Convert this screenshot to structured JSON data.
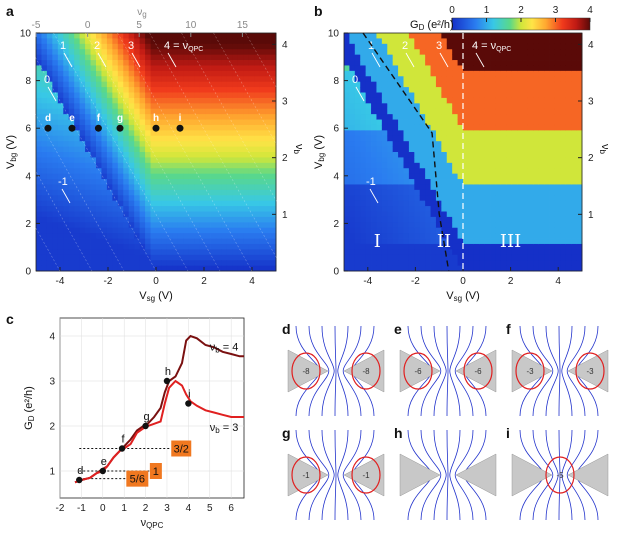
{
  "panels": {
    "a": "a",
    "b": "b",
    "c": "c",
    "d": "d",
    "e": "e",
    "f": "f",
    "g": "g",
    "h": "h",
    "i": "i"
  },
  "colors": {
    "red_curve": "#e02020",
    "dark_curve": "#7a1010",
    "box": "#f07820",
    "field_line": "#2233cc",
    "edge_state": "#e02020",
    "dot": "#111111"
  },
  "colorbar": {
    "label": "G",
    "label_sub": "D",
    "label_unit": " (e²/h)",
    "ticks": [
      "0",
      "1",
      "2",
      "3",
      "4"
    ],
    "range": [
      0,
      4
    ]
  },
  "chart_data": [
    {
      "type": "heatmap",
      "panel": "a",
      "xlabel": "V",
      "xlabel_sub": "sg",
      "xlabel_unit": " (V)",
      "ylabel": "V",
      "ylabel_sub": "bg",
      "ylabel_unit": " (V)",
      "top_label": "ν",
      "top_label_sub": "g",
      "right_label": "ν",
      "right_label_sub": "b",
      "xlim": [
        -5,
        5
      ],
      "ylim": [
        0,
        10
      ],
      "xticks": [
        "-4",
        "-2",
        "0",
        "2",
        "4"
      ],
      "yticks": [
        "0",
        "2",
        "4",
        "6",
        "8",
        "10"
      ],
      "top_ticks": [
        "-5",
        "0",
        "5",
        "10",
        "15"
      ],
      "right_ticks": [
        "1",
        "2",
        "3",
        "4"
      ],
      "filling_annotations": [
        "-1",
        "0",
        "1",
        "2",
        "3",
        "4 = ν",
        "QPC"
      ],
      "points": [
        {
          "label": "d",
          "x": -4.5,
          "y": 6.0
        },
        {
          "label": "e",
          "x": -3.5,
          "y": 6.0
        },
        {
          "label": "f",
          "x": -2.4,
          "y": 6.0
        },
        {
          "label": "g",
          "x": -1.5,
          "y": 6.0
        },
        {
          "label": "h",
          "x": 0.0,
          "y": 6.0
        },
        {
          "label": "i",
          "x": 1.0,
          "y": 6.0
        }
      ]
    },
    {
      "type": "heatmap",
      "panel": "b",
      "xlabel": "V",
      "xlabel_sub": "sg",
      "xlabel_unit": " (V)",
      "ylabel": "V",
      "ylabel_sub": "bg",
      "ylabel_unit": " (V)",
      "right_label": "ν",
      "right_label_sub": "b",
      "xlim": [
        -5,
        5
      ],
      "ylim": [
        0,
        10
      ],
      "xticks": [
        "-4",
        "-2",
        "0",
        "2",
        "4"
      ],
      "yticks": [
        "0",
        "2",
        "4",
        "6",
        "8",
        "10"
      ],
      "right_ticks": [
        "1",
        "2",
        "3",
        "4"
      ],
      "regions": [
        "I",
        "II",
        "III"
      ],
      "filling_annotations": [
        "-1",
        "0",
        "1",
        "2",
        "3",
        "4 = ν",
        "QPC"
      ]
    },
    {
      "type": "line",
      "panel": "c",
      "xlabel": "ν",
      "xlabel_sub": "QPC",
      "ylabel": "G",
      "ylabel_sub": "D",
      "ylabel_unit": " (e²/h)",
      "xlim": [
        -2,
        6.6
      ],
      "ylim": [
        0.4,
        4.4
      ],
      "xticks": [
        "-2",
        "-1",
        "0",
        "1",
        "2",
        "3",
        "4",
        "5",
        "6"
      ],
      "yticks": [
        "1",
        "2",
        "3",
        "4"
      ],
      "series": [
        {
          "name": "ν",
          "name_sub": "b",
          "name_value": " = 4",
          "x": [
            -1.3,
            -1.0,
            -0.6,
            -0.3,
            0.0,
            0.2,
            0.5,
            0.8,
            1.0,
            1.3,
            1.6,
            1.9,
            2.1,
            2.4,
            2.7,
            2.9,
            3.1,
            3.4,
            3.7,
            3.9,
            4.1,
            4.4,
            4.8,
            5.2,
            5.6,
            6.0,
            6.4,
            6.6
          ],
          "y": [
            0.75,
            0.8,
            0.85,
            0.95,
            1.05,
            1.1,
            1.3,
            1.45,
            1.55,
            1.7,
            1.9,
            2.0,
            2.05,
            2.2,
            2.4,
            2.75,
            3.0,
            3.1,
            3.4,
            3.9,
            4.0,
            3.95,
            3.8,
            3.75,
            3.65,
            3.6,
            3.55,
            3.55
          ]
        },
        {
          "name": "ν",
          "name_sub": "b",
          "name_value": " = 3",
          "x": [
            -1.3,
            -1.0,
            -0.6,
            -0.3,
            0.0,
            0.2,
            0.5,
            0.8,
            1.0,
            1.3,
            1.6,
            1.9,
            2.1,
            2.4,
            2.7,
            2.9,
            3.1,
            3.4,
            3.7,
            3.9,
            4.1,
            4.4,
            4.8,
            5.2,
            5.6,
            6.0,
            6.4,
            6.6
          ],
          "y": [
            0.75,
            0.8,
            0.85,
            0.95,
            1.0,
            1.1,
            1.3,
            1.45,
            1.5,
            1.6,
            1.85,
            1.95,
            2.0,
            2.05,
            2.1,
            2.5,
            2.85,
            3.0,
            2.9,
            2.7,
            2.55,
            2.45,
            2.35,
            2.3,
            2.25,
            2.2,
            2.2,
            2.2
          ]
        }
      ],
      "points": [
        {
          "label": "d",
          "x": -1.1,
          "y": 0.8
        },
        {
          "label": "e",
          "x": 0.0,
          "y": 1.0
        },
        {
          "label": "f",
          "x": 0.9,
          "y": 1.5
        },
        {
          "label": "g",
          "x": 2.0,
          "y": 2.0
        },
        {
          "label": "h",
          "x": 3.0,
          "y": 3.0
        },
        {
          "label": "i",
          "x": 4.0,
          "y": 2.5
        }
      ],
      "plateau_boxes": [
        {
          "label": "3/2",
          "y": 1.5
        },
        {
          "label": "1",
          "y": 1.0
        },
        {
          "label": "5/6",
          "y": 0.83
        }
      ]
    }
  ],
  "schematics": {
    "d": [
      "-8",
      "-8"
    ],
    "e": [
      "-6",
      "-6"
    ],
    "f": [
      "-3",
      "-3"
    ],
    "g": [
      "-1",
      "-1"
    ],
    "h": [],
    "i": [
      "-5"
    ]
  }
}
